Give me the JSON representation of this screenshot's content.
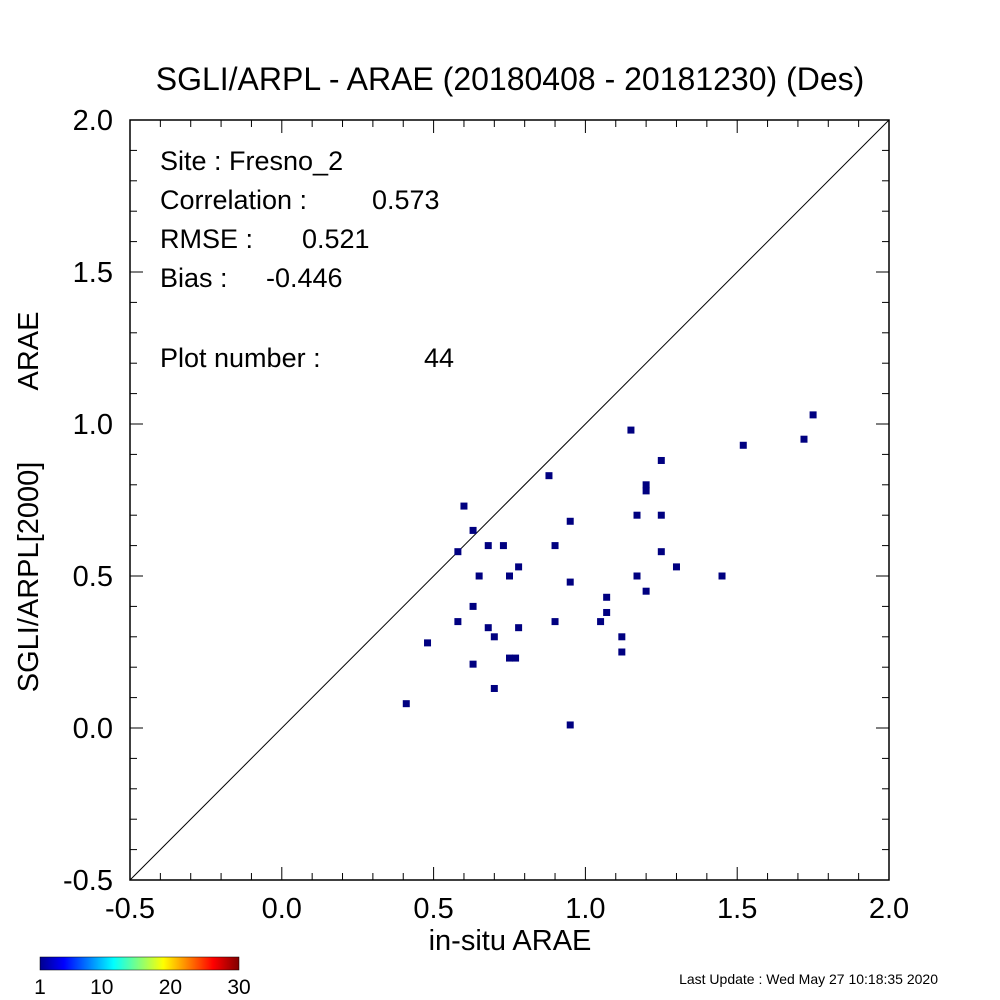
{
  "chart_data": {
    "type": "scatter",
    "title": "SGLI/ARPL - ARAE (20180408 - 20181230) (Des)",
    "xlabel": "in-situ ARAE",
    "ylabel_line1": "SGLI/ARPL[2000]",
    "ylabel_line2": "ARAE",
    "xlim": [
      -0.5,
      2.0
    ],
    "ylim": [
      -0.5,
      2.0
    ],
    "x_ticks": [
      "-0.5",
      "0.0",
      "0.5",
      "1.0",
      "1.5",
      "2.0"
    ],
    "y_ticks": [
      "-0.5",
      "0.0",
      "0.5",
      "1.0",
      "1.5",
      "2.0"
    ],
    "one_to_one_line": true,
    "grid": false,
    "marker_color": "#000080",
    "points": [
      {
        "x": 0.41,
        "y": 0.08
      },
      {
        "x": 0.48,
        "y": 0.28
      },
      {
        "x": 0.58,
        "y": 0.35
      },
      {
        "x": 0.58,
        "y": 0.58
      },
      {
        "x": 0.6,
        "y": 0.73
      },
      {
        "x": 0.63,
        "y": 0.65
      },
      {
        "x": 0.63,
        "y": 0.4
      },
      {
        "x": 0.63,
        "y": 0.21
      },
      {
        "x": 0.65,
        "y": 0.5
      },
      {
        "x": 0.68,
        "y": 0.6
      },
      {
        "x": 0.68,
        "y": 0.33
      },
      {
        "x": 0.7,
        "y": 0.3
      },
      {
        "x": 0.7,
        "y": 0.13
      },
      {
        "x": 0.73,
        "y": 0.6
      },
      {
        "x": 0.75,
        "y": 0.5
      },
      {
        "x": 0.75,
        "y": 0.23
      },
      {
        "x": 0.77,
        "y": 0.23
      },
      {
        "x": 0.78,
        "y": 0.53
      },
      {
        "x": 0.78,
        "y": 0.33
      },
      {
        "x": 0.88,
        "y": 0.83
      },
      {
        "x": 0.9,
        "y": 0.6
      },
      {
        "x": 0.9,
        "y": 0.35
      },
      {
        "x": 0.95,
        "y": 0.68
      },
      {
        "x": 0.95,
        "y": 0.48
      },
      {
        "x": 0.95,
        "y": 0.01
      },
      {
        "x": 1.05,
        "y": 0.35
      },
      {
        "x": 1.07,
        "y": 0.43
      },
      {
        "x": 1.07,
        "y": 0.38
      },
      {
        "x": 1.12,
        "y": 0.3
      },
      {
        "x": 1.12,
        "y": 0.25
      },
      {
        "x": 1.15,
        "y": 0.98
      },
      {
        "x": 1.17,
        "y": 0.7
      },
      {
        "x": 1.17,
        "y": 0.5
      },
      {
        "x": 1.2,
        "y": 0.8
      },
      {
        "x": 1.2,
        "y": 0.78
      },
      {
        "x": 1.2,
        "y": 0.45
      },
      {
        "x": 1.25,
        "y": 0.88
      },
      {
        "x": 1.25,
        "y": 0.7
      },
      {
        "x": 1.25,
        "y": 0.58
      },
      {
        "x": 1.3,
        "y": 0.53
      },
      {
        "x": 1.45,
        "y": 0.5
      },
      {
        "x": 1.52,
        "y": 0.93
      },
      {
        "x": 1.72,
        "y": 0.95
      },
      {
        "x": 1.75,
        "y": 1.03
      }
    ],
    "stats": {
      "site": "Site : Fresno_2",
      "correlation_label": "Correlation :",
      "correlation_value": "0.573",
      "rmse_label": "RMSE :",
      "rmse_value": "0.521",
      "bias_label": "Bias :",
      "bias_value": "-0.446",
      "plot_number_label": "Plot number :",
      "plot_number_value": "44"
    },
    "colorbar": {
      "ticks": [
        "1",
        "10",
        "20",
        "30"
      ],
      "tick_values": [
        1,
        10,
        20,
        30
      ],
      "range": [
        1,
        30
      ],
      "colors": [
        "#00008f",
        "#0000ff",
        "#00ffff",
        "#ffff00",
        "#ff0000",
        "#800000"
      ]
    }
  },
  "footer": {
    "last_update": "Last Update : Wed May 27 10:18:35 2020"
  }
}
